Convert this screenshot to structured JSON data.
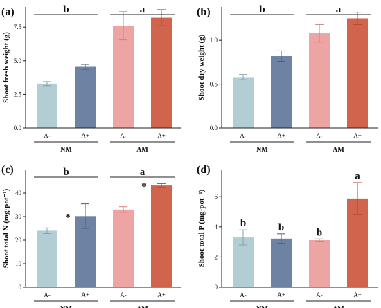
{
  "colors": {
    "NM_minus": "#b3cdd4",
    "NM_plus": "#6e82a3",
    "AM_minus": "#eda5a4",
    "AM_plus": "#d0644c",
    "err_NM_minus": "#7fa5b0",
    "err_NM_plus": "#4a5c7e",
    "err_AM_minus": "#d97a79",
    "err_AM_plus": "#b8452f"
  },
  "chart_data": [
    {
      "type": "bar",
      "panel": "(a)",
      "ylabel": "Shoot fresh weight (g)",
      "ylim": [
        0,
        9
      ],
      "yticks": [
        "0.0",
        "2.5",
        "5.0",
        "7.5"
      ],
      "ytick_values": [
        0,
        2.5,
        5.0,
        7.5
      ],
      "categories": [
        "A-",
        "A+",
        "A-",
        "A+"
      ],
      "groups": [
        {
          "name": "NM",
          "letter": "b"
        },
        {
          "name": "AM",
          "letter": "a"
        }
      ],
      "values": [
        3.3,
        4.55,
        7.6,
        8.2
      ],
      "errors": [
        0.15,
        0.18,
        1.05,
        0.6
      ],
      "bar_letters": [
        "",
        "",
        "",
        ""
      ],
      "stars": [
        "",
        "",
        "",
        ""
      ]
    },
    {
      "type": "bar",
      "panel": "(b)",
      "ylabel": "Shoot dry weight (g)",
      "ylim": [
        0,
        1.38
      ],
      "yticks": [
        "0.0",
        "0.5",
        "1.0"
      ],
      "ytick_values": [
        0,
        0.5,
        1.0
      ],
      "categories": [
        "A-",
        "A+",
        "A-",
        "A+"
      ],
      "groups": [
        {
          "name": "NM",
          "letter": "b"
        },
        {
          "name": "AM",
          "letter": "a"
        }
      ],
      "values": [
        0.58,
        0.82,
        1.08,
        1.25
      ],
      "errors": [
        0.03,
        0.06,
        0.1,
        0.07
      ],
      "bar_letters": [
        "",
        "",
        "",
        ""
      ],
      "stars": [
        "",
        "",
        "",
        ""
      ]
    },
    {
      "type": "bar",
      "panel": "(c)",
      "ylabel": "Shoot total N (mg·pot⁻¹)",
      "ylim": [
        0,
        50
      ],
      "yticks": [
        "0",
        "10",
        "20",
        "30",
        "40"
      ],
      "ytick_values": [
        0,
        10,
        20,
        30,
        40
      ],
      "categories": [
        "A-",
        "A+",
        "A-",
        "A+"
      ],
      "groups": [
        {
          "name": "NM",
          "letter": "b"
        },
        {
          "name": "AM",
          "letter": "a"
        }
      ],
      "values": [
        24,
        30.2,
        33,
        43.2
      ],
      "errors": [
        1.2,
        5.2,
        1.2,
        0.8
      ],
      "bar_letters": [
        "",
        "",
        "",
        ""
      ],
      "stars": [
        "",
        "*",
        "",
        "*"
      ]
    },
    {
      "type": "bar",
      "panel": "(d)",
      "ylabel": "Shoot total P (mg·pot⁻¹)",
      "ylim": [
        0,
        7.8
      ],
      "yticks": [
        "0",
        "2",
        "4",
        "6"
      ],
      "ytick_values": [
        0,
        2,
        4,
        6
      ],
      "categories": [
        "A-",
        "A+",
        "A-",
        "A+"
      ],
      "groups": [
        {
          "name": "NM",
          "letter": ""
        },
        {
          "name": "AM",
          "letter": ""
        }
      ],
      "values": [
        3.3,
        3.22,
        3.12,
        5.88
      ],
      "errors": [
        0.5,
        0.32,
        0.08,
        1.05
      ],
      "bar_letters": [
        "b",
        "b",
        "b",
        "a"
      ],
      "stars": [
        "",
        "",
        "",
        ""
      ]
    }
  ]
}
